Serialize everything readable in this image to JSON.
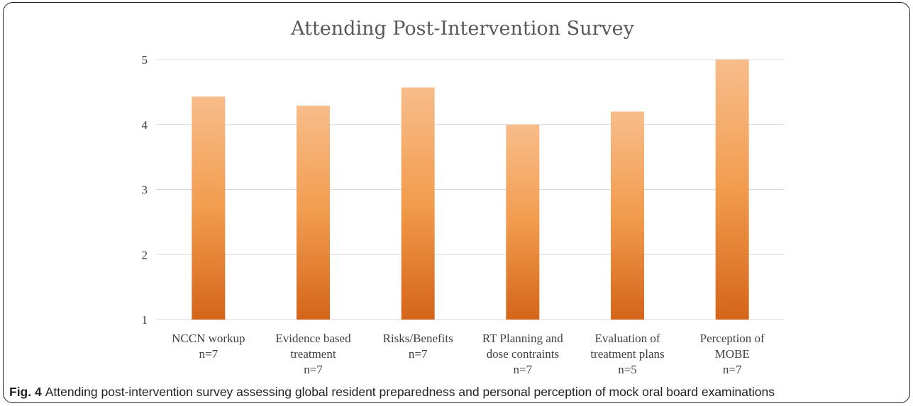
{
  "chart_data": {
    "type": "bar",
    "title": "Attending Post-Intervention Survey",
    "categories": [
      [
        "NCCN workup",
        "n=7"
      ],
      [
        "Evidence based",
        "treatment",
        "n=7"
      ],
      [
        "Risks/Benefits",
        "n=7"
      ],
      [
        "RT Planning and",
        "dose contraints",
        "n=7"
      ],
      [
        "Evaluation of",
        "treatment plans",
        "n=5"
      ],
      [
        "Perception of",
        "MOBE",
        "n=7"
      ]
    ],
    "values": [
      4.43,
      4.29,
      4.57,
      4.0,
      4.2,
      5.0
    ],
    "ylim": [
      1,
      5
    ],
    "yticks": [
      "1",
      "2",
      "3",
      "4",
      "5"
    ],
    "grid": true,
    "colors": {
      "bar_top": "#f8bd8b",
      "bar_mid": "#f29c4e",
      "bar_bottom": "#d4651a",
      "grid": "#d9d9d9"
    }
  },
  "caption": {
    "label": "Fig. 4",
    "text": "Attending post-intervention survey assessing global resident preparedness and personal perception of mock oral board examinations"
  }
}
